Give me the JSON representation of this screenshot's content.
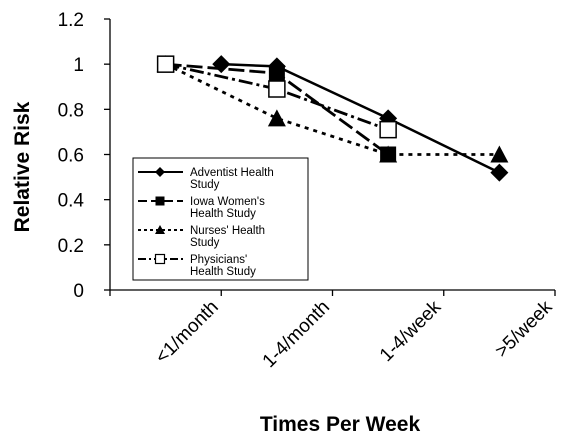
{
  "chart_data": {
    "type": "line",
    "title": "",
    "xlabel": "Times Per Week",
    "ylabel": "Relative Risk",
    "ylim": [
      0,
      1.2
    ],
    "yticks": [
      "0",
      "0.2",
      "0.4",
      "0.6",
      "0.8",
      "1",
      "1.2"
    ],
    "categories": [
      "<1/month",
      "1-4/month",
      "1-4/week",
      ">5/week"
    ],
    "grid": false,
    "legend_position": "left-inside",
    "series": [
      {
        "name_lines": [
          "Adventist Health",
          "Study"
        ],
        "marker": "diamond",
        "line_style": "solid",
        "points": [
          [
            1,
            1.0
          ],
          [
            1.5,
            0.99
          ],
          [
            2.5,
            0.76
          ],
          [
            3.5,
            0.52
          ]
        ]
      },
      {
        "name_lines": [
          "Iowa Women's",
          "Health Study"
        ],
        "marker": "filled-square",
        "line_style": "long-dash",
        "points": [
          [
            0.5,
            1.0
          ],
          [
            1.5,
            0.96
          ],
          [
            2.5,
            0.6
          ]
        ]
      },
      {
        "name_lines": [
          "Nurses' Health",
          "Study"
        ],
        "marker": "triangle",
        "line_style": "short-dash",
        "points": [
          [
            0.5,
            1.0
          ],
          [
            1.5,
            0.76
          ],
          [
            2.5,
            0.6
          ],
          [
            3.5,
            0.6
          ]
        ]
      },
      {
        "name_lines": [
          "Physicians'",
          "Health Study"
        ],
        "marker": "open-square",
        "line_style": "dash-dot",
        "points": [
          [
            0.5,
            1.0
          ],
          [
            1.5,
            0.89
          ],
          [
            2.5,
            0.71
          ]
        ]
      }
    ]
  }
}
